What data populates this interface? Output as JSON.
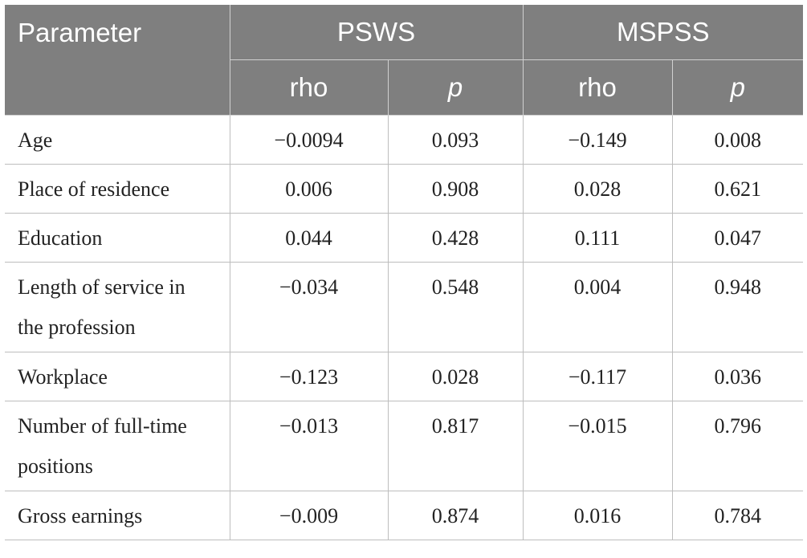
{
  "header": {
    "parameter": "Parameter",
    "group1": "PSWS",
    "group2": "MSPSS",
    "rho": "rho",
    "p": "p"
  },
  "rows": [
    {
      "parameter": "Age",
      "psws_rho": "−0.0094",
      "psws_p": "0.093",
      "mspss_rho": "−0.149",
      "mspss_p": "0.008"
    },
    {
      "parameter": "Place of residence",
      "psws_rho": "0.006",
      "psws_p": "0.908",
      "mspss_rho": "0.028",
      "mspss_p": "0.621"
    },
    {
      "parameter": "Education",
      "psws_rho": "0.044",
      "psws_p": "0.428",
      "mspss_rho": "0.111",
      "mspss_p": "0.047"
    },
    {
      "parameter_line1": "Length of service in",
      "parameter_line2": "the profession",
      "psws_rho": "−0.034",
      "psws_p": "0.548",
      "mspss_rho": "0.004",
      "mspss_p": "0.948"
    },
    {
      "parameter": "Workplace",
      "psws_rho": "−0.123",
      "psws_p": "0.028",
      "mspss_rho": "−0.117",
      "mspss_p": "0.036"
    },
    {
      "parameter_line1": "Number of full-time",
      "parameter_line2": "positions",
      "psws_rho": "−0.013",
      "psws_p": "0.817",
      "mspss_rho": "−0.015",
      "mspss_p": "0.796"
    },
    {
      "parameter": "Gross earnings",
      "psws_rho": "−0.009",
      "psws_p": "0.874",
      "mspss_rho": "0.016",
      "mspss_p": "0.784"
    }
  ]
}
